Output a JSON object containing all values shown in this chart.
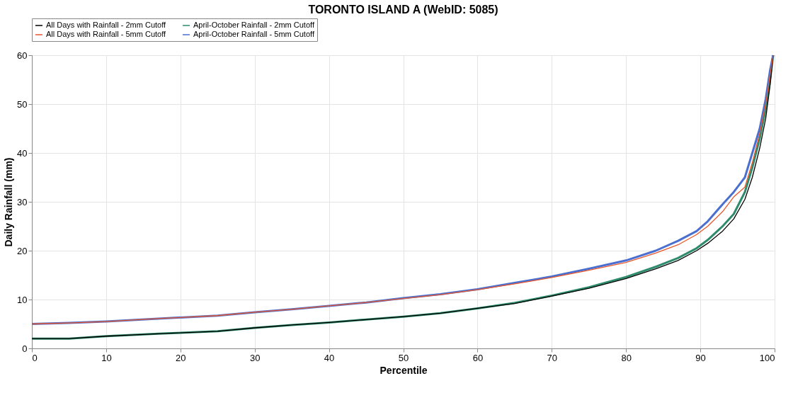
{
  "chart_data": {
    "type": "line",
    "title": "TORONTO ISLAND A (WebID: 5085)",
    "xlabel": "Percentile",
    "ylabel": "Daily Rainfall (mm)",
    "x": [
      0,
      5,
      10,
      17,
      25,
      30,
      35,
      40,
      45,
      50,
      55,
      60,
      65,
      70,
      75,
      80,
      84,
      87,
      89.5,
      91,
      93,
      94.5,
      96,
      97,
      98,
      98.8,
      99.4,
      99.8
    ],
    "series": [
      {
        "name": "All Days with Rainfall - 2mm Cutoff",
        "color": "#000000",
        "values": [
          2,
          2,
          2.5,
          3,
          3.5,
          4.2,
          4.8,
          5.3,
          5.9,
          6.5,
          7.2,
          8.2,
          9.2,
          10.7,
          12.3,
          14.3,
          16.3,
          18,
          20,
          21.5,
          24,
          26.5,
          30.5,
          35,
          41,
          47,
          54,
          60
        ]
      },
      {
        "name": "April-October Rainfall - 2mm Cutoff",
        "color": "#2e8b6e",
        "values": [
          2,
          2,
          2.5,
          3,
          3.5,
          4.2,
          4.8,
          5.3,
          5.9,
          6.5,
          7.2,
          8.2,
          9.3,
          10.8,
          12.5,
          14.6,
          16.7,
          18.5,
          20.5,
          22.2,
          25,
          27.5,
          32,
          37,
          43,
          49,
          55,
          60
        ]
      },
      {
        "name": "All Days with Rainfall - 5mm Cutoff",
        "color": "#e8572a",
        "values": [
          5,
          5.2,
          5.5,
          6.1,
          6.7,
          7.4,
          8,
          8.7,
          9.4,
          10.2,
          11,
          12,
          13.2,
          14.5,
          16,
          17.6,
          19.5,
          21.2,
          23.3,
          25,
          28,
          31,
          33,
          38,
          44,
          50,
          56,
          60
        ]
      },
      {
        "name": "April-October Rainfall - 5mm Cutoff",
        "color": "#4a6fd0",
        "values": [
          5,
          5.2,
          5.5,
          6.1,
          6.7,
          7.4,
          8,
          8.7,
          9.4,
          10.3,
          11.1,
          12.1,
          13.4,
          14.7,
          16.3,
          18,
          20,
          22,
          24,
          26,
          29.5,
          32,
          35,
          40,
          45,
          51,
          57,
          60
        ]
      }
    ],
    "xlim": [
      0,
      100
    ],
    "xticks": [
      0,
      10,
      20,
      30,
      40,
      50,
      60,
      70,
      80,
      90,
      100
    ],
    "ylim": [
      0,
      60
    ],
    "yticks": [
      0,
      10,
      20,
      30,
      40,
      50,
      60
    ],
    "grid": true,
    "legend": "top",
    "marker": "none",
    "line_style": "solid"
  }
}
